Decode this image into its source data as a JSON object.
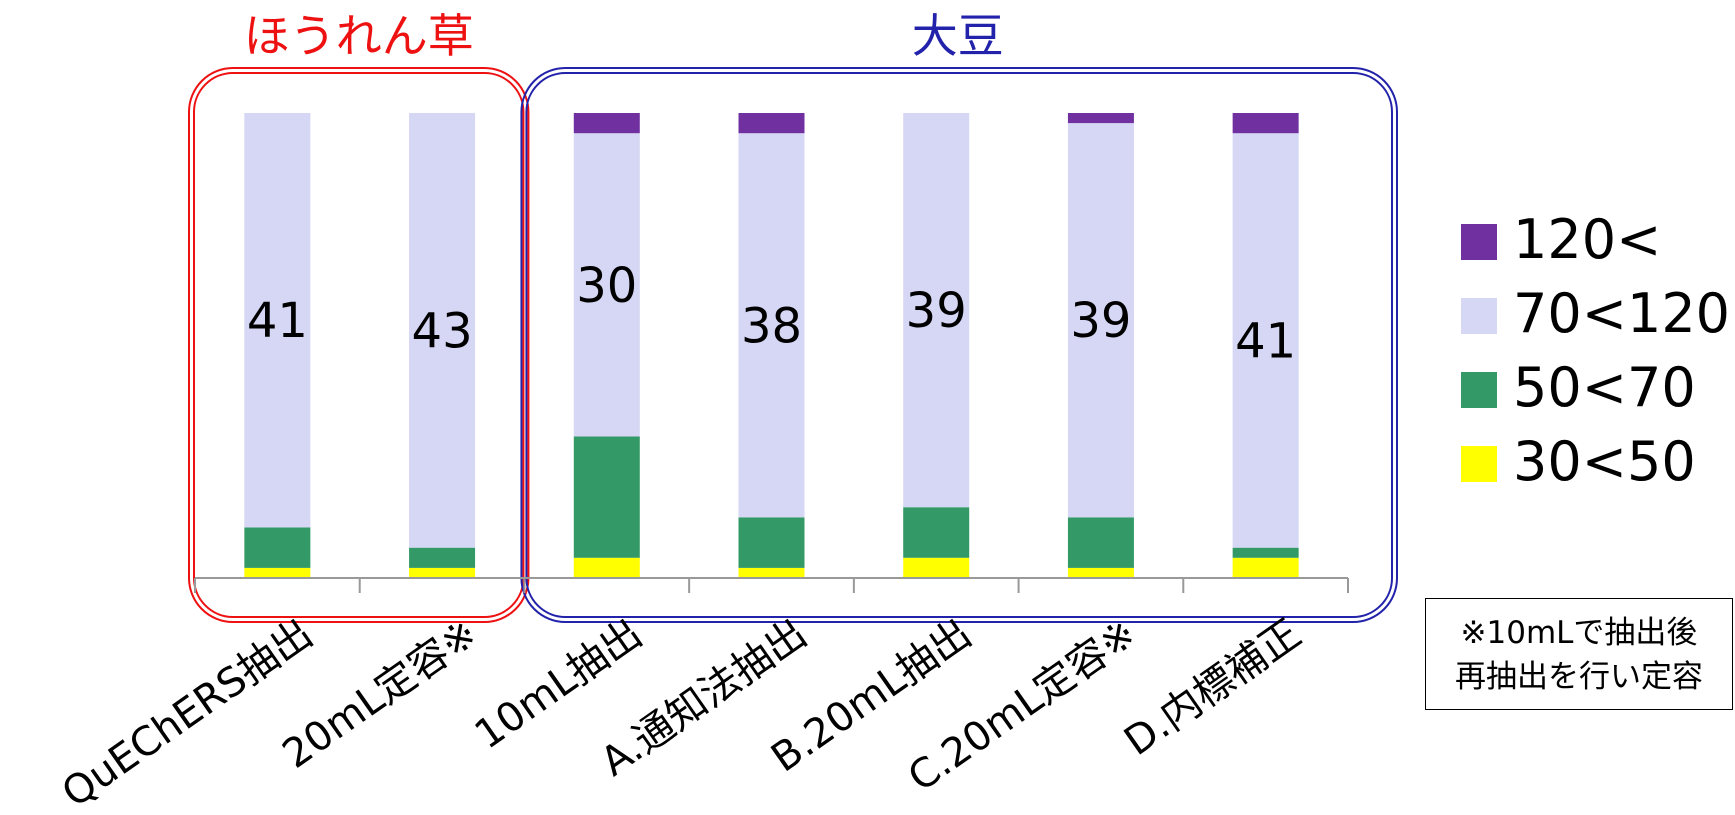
{
  "chart_data": {
    "type": "bar",
    "stacked": true,
    "normalized": true,
    "groups": [
      {
        "label": "ほうれん草",
        "color": "#ee1111",
        "categories": [
          "QuEChERS抽出",
          "20mL定容※"
        ]
      },
      {
        "label": "大豆",
        "color": "#2222aa",
        "categories": [
          "10mL抽出",
          "A.通知法抽出",
          "B.20mL抽出",
          "C.20mL定容※",
          "D.内標補正"
        ]
      }
    ],
    "categories": [
      "QuEChERS抽出",
      "20mL定容※",
      "10mL抽出",
      "A.通知法抽出",
      "B.20mL抽出",
      "C.20mL定容※",
      "D.内標補正"
    ],
    "series": [
      {
        "name": "30<50",
        "color": "#ffff00",
        "values": [
          1,
          1,
          2,
          1,
          2,
          1,
          2
        ]
      },
      {
        "name": "50<70",
        "color": "#339966",
        "values": [
          4,
          2,
          12,
          5,
          5,
          5,
          1
        ]
      },
      {
        "name": "70<120",
        "color": "#d6d6f5",
        "values": [
          41,
          43,
          30,
          38,
          39,
          39,
          41
        ]
      },
      {
        "name": "120<",
        "color": "#7030a0",
        "values": [
          0,
          0,
          2,
          2,
          0,
          1,
          2
        ]
      }
    ],
    "data_labels": [
      "41",
      "43",
      "30",
      "38",
      "39",
      "39",
      "41"
    ],
    "legend_position": "right",
    "grid": false
  },
  "note": {
    "line1": "※10mLで抽出後",
    "line2": "再抽出を行い定容"
  }
}
